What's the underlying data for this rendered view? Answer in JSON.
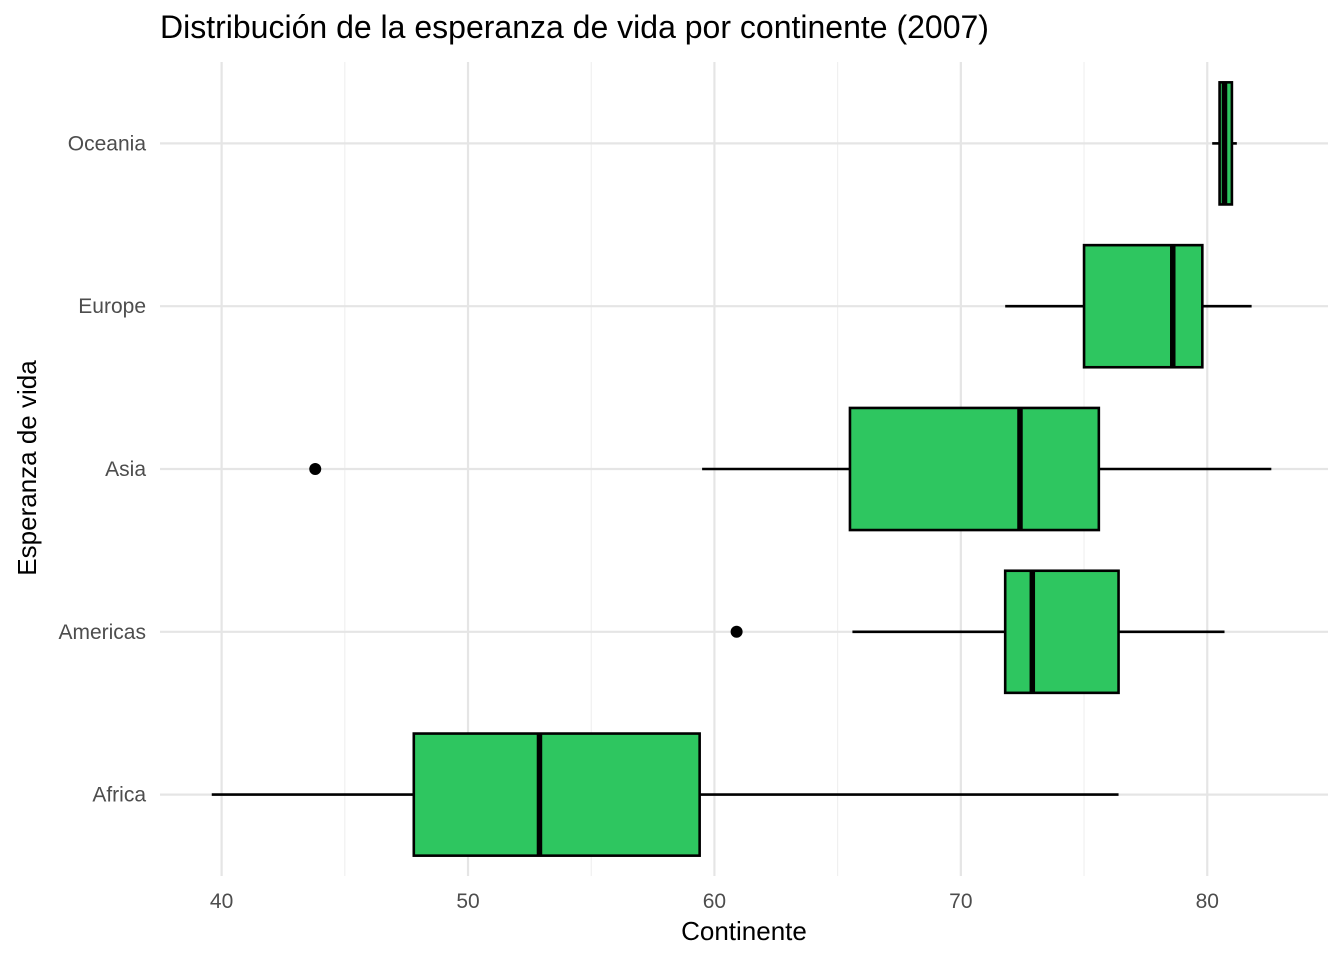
{
  "chart_data": {
    "type": "boxplot",
    "orientation": "horizontal",
    "title": "Distribución de la esperanza de vida por continente (2007)",
    "xlabel": "Continente",
    "ylabel": "Esperanza de vida",
    "xlim": [
      37.5,
      84.9
    ],
    "x_ticks": [
      40,
      50,
      60,
      70,
      80
    ],
    "x_tick_labels": [
      "40",
      "50",
      "60",
      "70",
      "80"
    ],
    "grid": true,
    "legend": "none",
    "box_color": "#2ec660",
    "categories": [
      "Africa",
      "Americas",
      "Asia",
      "Europe",
      "Oceania"
    ],
    "boxes": [
      {
        "category": "Africa",
        "whisker_low": 39.6,
        "q1": 47.8,
        "median": 52.9,
        "q3": 59.4,
        "whisker_high": 76.4,
        "outliers": []
      },
      {
        "category": "Americas",
        "whisker_low": 65.6,
        "q1": 71.8,
        "median": 72.9,
        "q3": 76.4,
        "whisker_high": 80.7,
        "outliers": [
          60.9
        ]
      },
      {
        "category": "Asia",
        "whisker_low": 59.5,
        "q1": 65.5,
        "median": 72.4,
        "q3": 75.6,
        "whisker_high": 82.6,
        "outliers": [
          43.8
        ]
      },
      {
        "category": "Europe",
        "whisker_low": 71.8,
        "q1": 75.0,
        "median": 78.6,
        "q3": 79.8,
        "whisker_high": 81.8,
        "outliers": []
      },
      {
        "category": "Oceania",
        "whisker_low": 80.2,
        "q1": 80.5,
        "median": 80.7,
        "q3": 81.0,
        "whisker_high": 81.2,
        "outliers": []
      }
    ]
  }
}
